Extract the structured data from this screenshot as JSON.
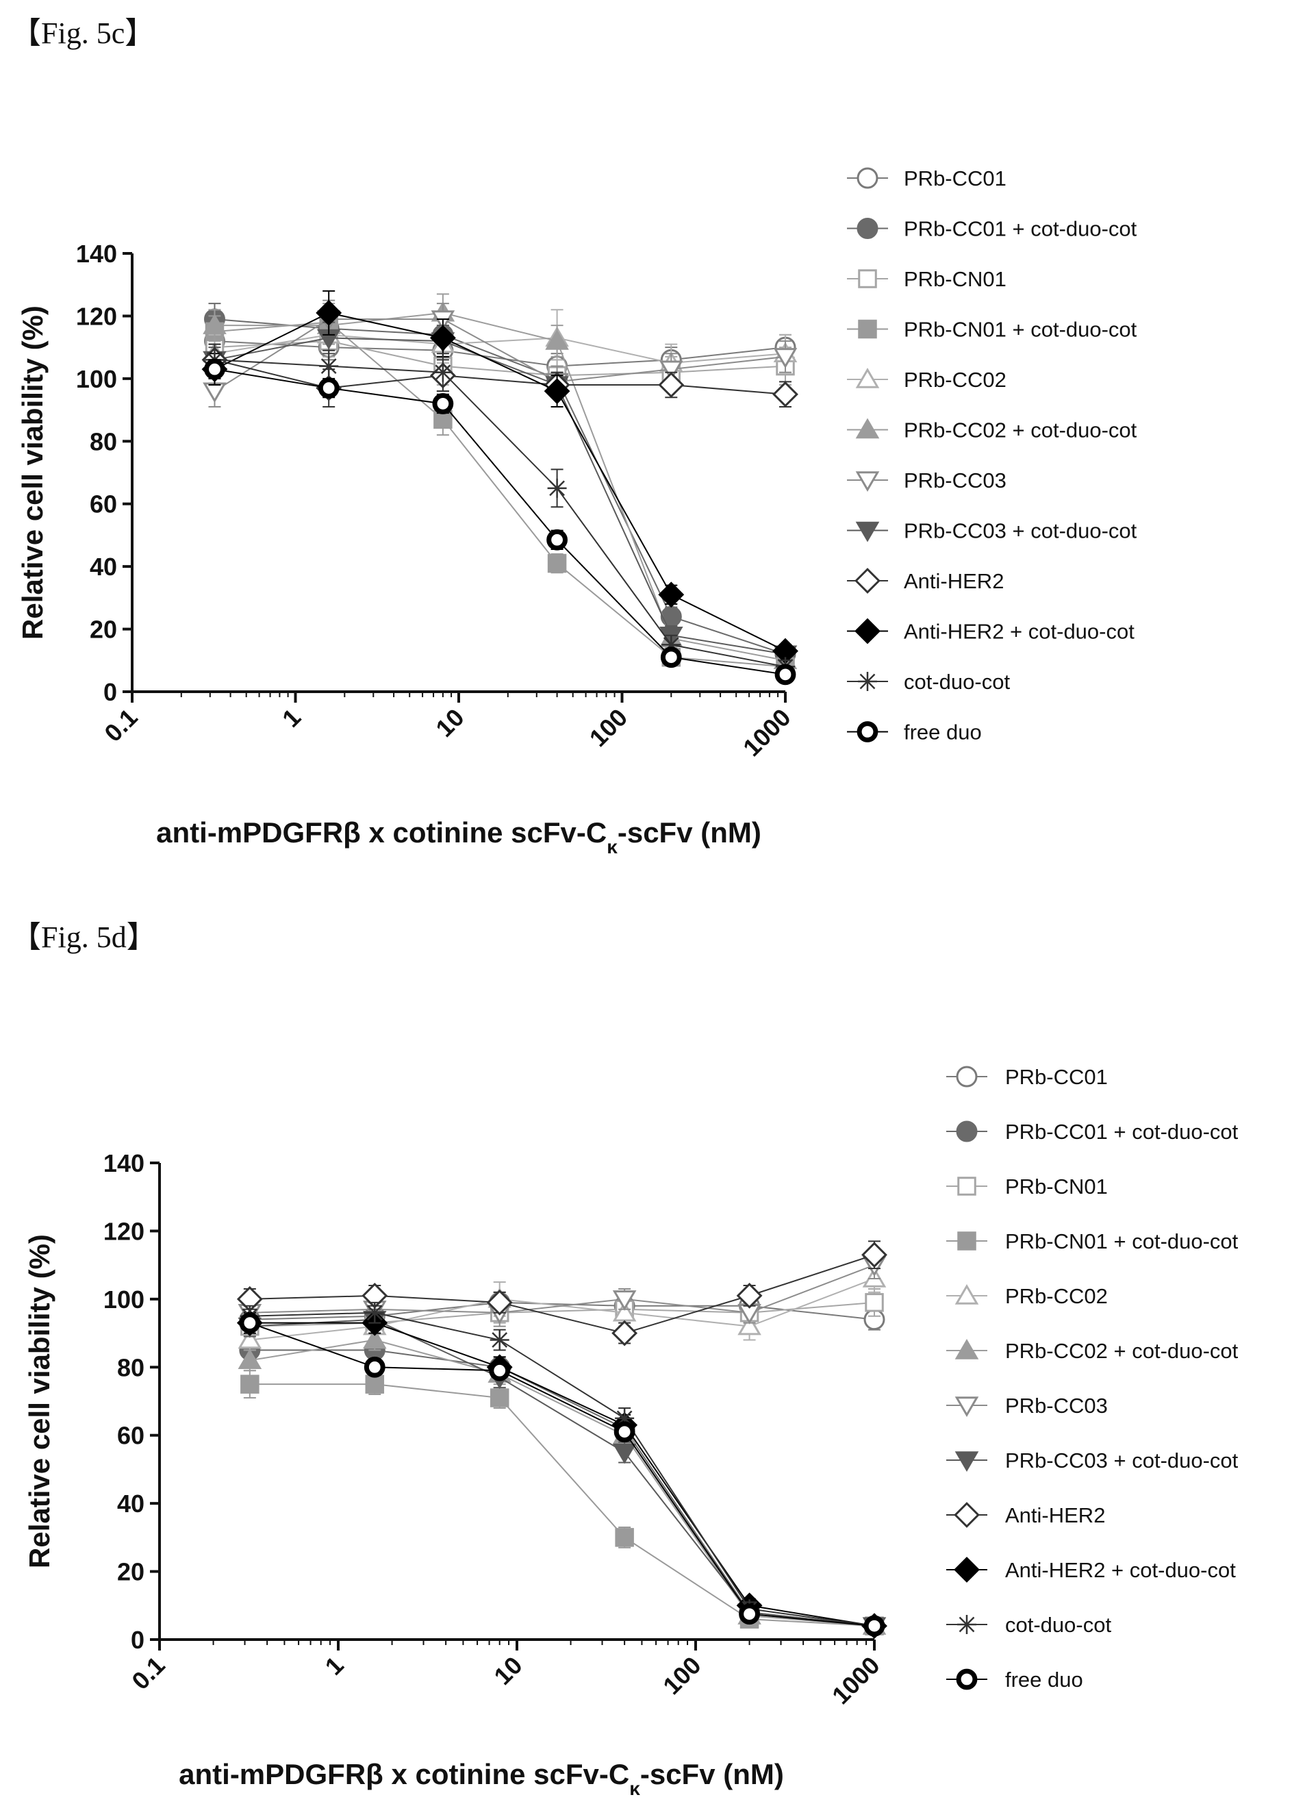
{
  "figures": [
    {
      "label": "【Fig. 5c】"
    },
    {
      "label": "【Fig. 5d】"
    }
  ],
  "chart_data": [
    {
      "type": "line",
      "xscale": "log",
      "xlim": [
        0.1,
        1000
      ],
      "ylim": [
        0,
        140
      ],
      "x_ticks": [
        "0.1",
        "1",
        "10",
        "100",
        "1000"
      ],
      "y_ticks": [
        "0",
        "20",
        "40",
        "60",
        "80",
        "100",
        "120",
        "140"
      ],
      "ylabel": "Relative cell viability (%)",
      "xlabel_parts": {
        "main": "anti-mPDGFRβ  x cotinine scFv-C",
        "sub": "κ",
        "tail": "-scFv (nM)"
      },
      "legend_position": "right",
      "x": [
        0.32,
        1.6,
        8,
        40,
        200,
        1000
      ],
      "series": [
        {
          "name": "PRb-CC01",
          "marker": "circle-open",
          "color": "#7a7a7a",
          "values": [
            112,
            110,
            109,
            104,
            106,
            110
          ],
          "err": [
            4,
            4,
            4,
            4,
            4,
            4
          ]
        },
        {
          "name": "PRb-CC01 + cot-duo-cot",
          "marker": "circle-filled",
          "color": "#6a6a6a",
          "values": [
            119,
            116,
            114,
            100,
            24,
            12
          ],
          "err": [
            5,
            5,
            5,
            4,
            3,
            2
          ]
        },
        {
          "name": "PRb-CN01",
          "marker": "square-open",
          "color": "#a6a6a6",
          "values": [
            110,
            112,
            104,
            101,
            102,
            104
          ],
          "err": [
            5,
            5,
            6,
            5,
            5,
            6
          ]
        },
        {
          "name": "PRb-CN01 + cot-duo-cot",
          "marker": "square-filled",
          "color": "#9a9a9a",
          "values": [
            115,
            118,
            87,
            41,
            11,
            8
          ],
          "err": [
            5,
            6,
            5,
            3,
            2,
            2
          ]
        },
        {
          "name": "PRb-CC02",
          "marker": "triangle-open",
          "color": "#b0b0b0",
          "values": [
            108,
            114,
            111,
            113,
            105,
            108
          ],
          "err": [
            6,
            6,
            6,
            9,
            6,
            6
          ]
        },
        {
          "name": "PRb-CC02 + cot-duo-cot",
          "marker": "triangle-filled",
          "color": "#9c9c9c",
          "values": [
            117,
            117,
            121,
            112,
            17,
            10
          ],
          "err": [
            5,
            6,
            6,
            5,
            3,
            2
          ]
        },
        {
          "name": "PRb-CC03",
          "marker": "triangleDown-open",
          "color": "#8c8c8c",
          "values": [
            96,
            119,
            119,
            99,
            103,
            107
          ],
          "err": [
            5,
            6,
            5,
            5,
            5,
            5
          ]
        },
        {
          "name": "PRb-CC03 + cot-duo-cot",
          "marker": "triangleDown-filled",
          "color": "#5a5a5a",
          "values": [
            106,
            113,
            112,
            98,
            18,
            12
          ],
          "err": [
            4,
            5,
            5,
            4,
            3,
            2
          ]
        },
        {
          "name": "Anti-HER2",
          "marker": "diamond-open",
          "color": "#333333",
          "values": [
            106,
            97,
            101,
            98,
            98,
            95
          ],
          "err": [
            5,
            6,
            5,
            4,
            4,
            4
          ]
        },
        {
          "name": "Anti-HER2 + cot-duo-cot",
          "marker": "diamond-filled",
          "color": "#000000",
          "values": [
            103,
            121,
            113,
            96,
            31,
            13
          ],
          "err": [
            5,
            7,
            6,
            5,
            3,
            2
          ]
        },
        {
          "name": "cot-duo-cot",
          "marker": "star",
          "color": "#333333",
          "values": [
            106,
            104,
            102,
            65,
            15,
            8
          ],
          "err": [
            5,
            5,
            6,
            6,
            3,
            2
          ]
        },
        {
          "name": "free duo",
          "marker": "circle-bold",
          "color": "#000000",
          "values": [
            103,
            97,
            92,
            48.5,
            11,
            5.5
          ],
          "err": [
            3,
            3,
            3,
            3,
            2,
            1
          ]
        }
      ]
    },
    {
      "type": "line",
      "xscale": "log",
      "xlim": [
        0.1,
        1000
      ],
      "ylim": [
        0,
        140
      ],
      "x_ticks": [
        "0.1",
        "1",
        "10",
        "100",
        "1000"
      ],
      "y_ticks": [
        "0",
        "20",
        "40",
        "60",
        "80",
        "100",
        "120",
        "140"
      ],
      "ylabel": "Relative cell viability (%)",
      "xlabel_parts": {
        "main": "anti-mPDGFRβ  x cotinine scFv-C",
        "sub": "κ",
        "tail": "-scFv (nM)"
      },
      "legend_position": "right",
      "x": [
        0.32,
        1.6,
        8,
        40,
        200,
        1000
      ],
      "series": [
        {
          "name": "PRb-CC01",
          "marker": "circle-open",
          "color": "#7a7a7a",
          "values": [
            94,
            95,
            99,
            98,
            98,
            94
          ],
          "err": [
            3,
            3,
            3,
            3,
            3,
            3
          ]
        },
        {
          "name": "PRb-CC01 + cot-duo-cot",
          "marker": "circle-filled",
          "color": "#6a6a6a",
          "values": [
            85,
            85,
            80,
            62,
            8,
            4
          ],
          "err": [
            3,
            3,
            3,
            3,
            2,
            1
          ]
        },
        {
          "name": "PRb-CN01",
          "marker": "square-open",
          "color": "#a6a6a6",
          "values": [
            92,
            93,
            96,
            97,
            96,
            99
          ],
          "err": [
            3,
            3,
            3,
            3,
            3,
            4
          ]
        },
        {
          "name": "PRb-CN01 + cot-duo-cot",
          "marker": "square-filled",
          "color": "#9a9a9a",
          "values": [
            75,
            75,
            71,
            30,
            6,
            4
          ],
          "err": [
            4,
            3,
            3,
            3,
            2,
            1
          ]
        },
        {
          "name": "PRb-CC02",
          "marker": "triangle-open",
          "color": "#b0b0b0",
          "values": [
            88,
            92,
            100,
            96,
            92,
            106
          ],
          "err": [
            3,
            4,
            5,
            4,
            4,
            4
          ]
        },
        {
          "name": "PRb-CC02 + cot-duo-cot",
          "marker": "triangle-filled",
          "color": "#9c9c9c",
          "values": [
            82,
            88,
            78,
            60,
            7,
            4
          ],
          "err": [
            3,
            3,
            3,
            3,
            2,
            1
          ]
        },
        {
          "name": "PRb-CC03",
          "marker": "triangleDown-open",
          "color": "#8c8c8c",
          "values": [
            96,
            97,
            96,
            100,
            96,
            110
          ],
          "err": [
            3,
            3,
            4,
            3,
            3,
            4
          ]
        },
        {
          "name": "PRb-CC03 + cot-duo-cot",
          "marker": "triangleDown-filled",
          "color": "#5a5a5a",
          "values": [
            92,
            94,
            77,
            55,
            8,
            4
          ],
          "err": [
            3,
            3,
            3,
            3,
            2,
            1
          ]
        },
        {
          "name": "Anti-HER2",
          "marker": "diamond-open",
          "color": "#333333",
          "values": [
            100,
            101,
            99,
            90,
            101,
            113
          ],
          "err": [
            3,
            3,
            3,
            3,
            3,
            4
          ]
        },
        {
          "name": "Anti-HER2 + cot-duo-cot",
          "marker": "diamond-filled",
          "color": "#000000",
          "values": [
            93,
            93,
            80,
            63,
            10,
            4
          ],
          "err": [
            3,
            3,
            3,
            3,
            2,
            1
          ]
        },
        {
          "name": "cot-duo-cot",
          "marker": "star",
          "color": "#333333",
          "values": [
            95,
            96,
            88,
            65,
            9,
            4
          ],
          "err": [
            3,
            3,
            3,
            3,
            2,
            1
          ]
        },
        {
          "name": "free duo",
          "marker": "circle-bold",
          "color": "#000000",
          "values": [
            93,
            80,
            79,
            61,
            7.5,
            4
          ],
          "err": [
            2,
            2,
            2,
            2,
            1,
            1
          ]
        }
      ]
    }
  ]
}
